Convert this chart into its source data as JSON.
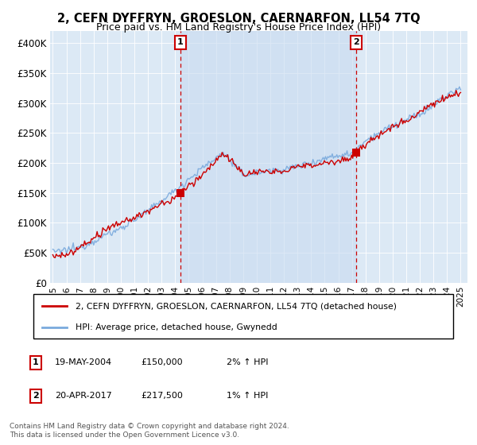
{
  "title1": "2, CEFN DYFFRYN, GROESLON, CAERNARFON, LL54 7TQ",
  "title2": "Price paid vs. HM Land Registry's House Price Index (HPI)",
  "ylim": [
    0,
    420000
  ],
  "yticks": [
    0,
    50000,
    100000,
    150000,
    200000,
    250000,
    300000,
    350000,
    400000
  ],
  "ytick_labels": [
    "£0",
    "£50K",
    "£100K",
    "£150K",
    "£200K",
    "£250K",
    "£300K",
    "£350K",
    "£400K"
  ],
  "background_color": "#dce9f5",
  "shade_color": "#c8daf0",
  "hpi_color": "#7aaadd",
  "price_color": "#cc0000",
  "marker1_date": 2004.38,
  "marker1_price": 150000,
  "marker1_label": "1",
  "marker1_date_str": "19-MAY-2004",
  "marker1_price_str": "£150,000",
  "marker1_hpi_str": "2% ↑ HPI",
  "marker2_date": 2017.3,
  "marker2_price": 217500,
  "marker2_label": "2",
  "marker2_date_str": "20-APR-2017",
  "marker2_price_str": "£217,500",
  "marker2_hpi_str": "1% ↑ HPI",
  "legend_line1": "2, CEFN DYFFRYN, GROESLON, CAERNARFON, LL54 7TQ (detached house)",
  "legend_line2": "HPI: Average price, detached house, Gwynedd",
  "footer1": "Contains HM Land Registry data © Crown copyright and database right 2024.",
  "footer2": "This data is licensed under the Open Government Licence v3.0.",
  "xlim_left": 1994.8,
  "xlim_right": 2025.5
}
